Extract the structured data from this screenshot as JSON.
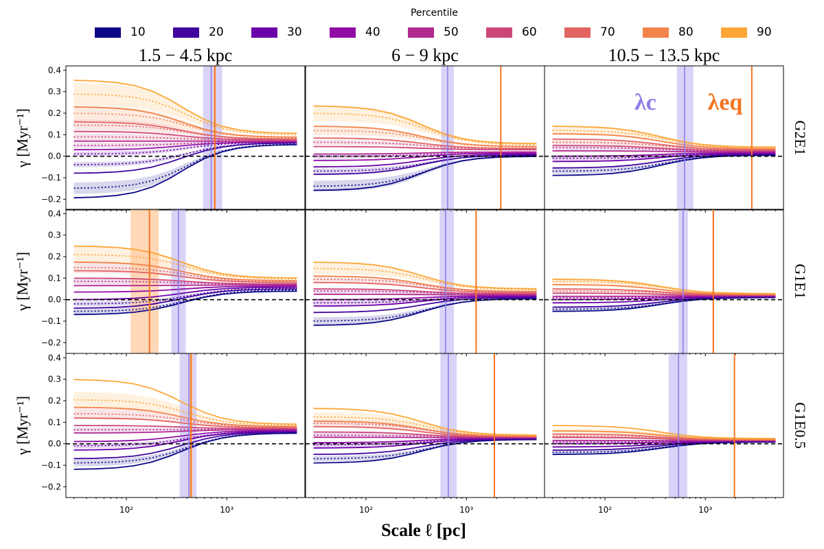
{
  "legend": {
    "title": "Percentile",
    "entries": [
      {
        "label": "10",
        "color": "#0d0887"
      },
      {
        "label": "20",
        "color": "#41049d"
      },
      {
        "label": "30",
        "color": "#6a00a8"
      },
      {
        "label": "40",
        "color": "#8f0da4"
      },
      {
        "label": "50",
        "color": "#b12a90"
      },
      {
        "label": "60",
        "color": "#cc4778"
      },
      {
        "label": "70",
        "color": "#e16462"
      },
      {
        "label": "80",
        "color": "#f2844b"
      },
      {
        "label": "90",
        "color": "#fca636"
      }
    ]
  },
  "columns": [
    "1.5 − 4.5 kpc",
    "6 − 9 kpc",
    "10.5 − 13.5 kpc"
  ],
  "rows": [
    "G2E1",
    "G1E1",
    "G1E0.5"
  ],
  "annotations": {
    "lambda_c": "λc",
    "lambda_eq": "λeq"
  },
  "colors": {
    "lambda_c": "#8f7de8",
    "lambda_eq": "#f5751f",
    "band_c": "#b9b0f0",
    "band_eq": "#ffc89a"
  },
  "chart_data": {
    "type": "line",
    "title": "",
    "xlabel": "Scale ℓ  [pc]",
    "ylabel": "γ [Myr⁻¹]",
    "xscale": "log",
    "xlim": [
      25,
      6000
    ],
    "ylim": [
      -0.25,
      0.42
    ],
    "yticks": [
      -0.2,
      -0.1,
      0.0,
      0.1,
      0.2,
      0.3,
      0.4
    ],
    "ytick_labels": [
      "−0.2",
      "−0.1",
      "0.0",
      "0.1",
      "0.2",
      "0.3",
      "0.4"
    ],
    "xticks": [
      100,
      1000
    ],
    "xtick_labels": [
      "10²",
      "10³"
    ],
    "x": [
      30,
      50,
      80,
      120,
      180,
      270,
      400,
      600,
      900,
      1300,
      2000,
      3000,
      5000
    ],
    "panels": [
      {
        "row": "G2E1",
        "col": "1.5 − 4.5 kpc",
        "lambda_c": {
          "value": 700,
          "band": [
            580,
            900
          ]
        },
        "lambda_eq": {
          "value": 760,
          "band": [
            740,
            780
          ]
        },
        "solid": [
          {
            "percentile": "10",
            "start": -0.195,
            "end": 0.055
          },
          {
            "percentile": "20",
            "start": -0.08,
            "end": 0.062
          },
          {
            "percentile": "40",
            "start": 0.03,
            "end": 0.066
          },
          {
            "percentile": "50",
            "start": 0.07,
            "end": 0.07
          },
          {
            "percentile": "60",
            "start": 0.115,
            "end": 0.075
          },
          {
            "percentile": "70",
            "start": 0.16,
            "end": 0.08
          },
          {
            "percentile": "80",
            "start": 0.23,
            "end": 0.088
          },
          {
            "percentile": "90",
            "start": 0.355,
            "end": 0.105
          }
        ],
        "dotted": [
          {
            "percentile": "10",
            "start": -0.15,
            "end": 0.058
          },
          {
            "percentile": "20",
            "start": -0.04,
            "end": 0.063
          },
          {
            "percentile": "30",
            "start": 0.01,
            "end": 0.065
          },
          {
            "percentile": "50",
            "start": 0.05,
            "end": 0.068
          },
          {
            "percentile": "60",
            "start": 0.09,
            "end": 0.072
          },
          {
            "percentile": "70",
            "start": 0.145,
            "end": 0.078
          },
          {
            "percentile": "80",
            "start": 0.2,
            "end": 0.085
          },
          {
            "percentile": "90",
            "start": 0.29,
            "end": 0.098
          }
        ]
      },
      {
        "row": "G2E1",
        "col": "6 − 9 kpc",
        "lambda_c": {
          "value": 650,
          "band": [
            560,
            750
          ]
        },
        "lambda_eq": {
          "value": 2200,
          "band": [
            2180,
            2220
          ]
        },
        "solid": [
          {
            "percentile": "10",
            "start": -0.16,
            "end": 0.0
          },
          {
            "percentile": "20",
            "start": -0.085,
            "end": 0.005
          },
          {
            "percentile": "30",
            "start": -0.05,
            "end": 0.01
          },
          {
            "percentile": "40",
            "start": -0.02,
            "end": 0.015
          },
          {
            "percentile": "50",
            "start": 0.01,
            "end": 0.02
          },
          {
            "percentile": "60",
            "start": 0.045,
            "end": 0.03
          },
          {
            "percentile": "70",
            "start": 0.085,
            "end": 0.036
          },
          {
            "percentile": "80",
            "start": 0.14,
            "end": 0.045
          },
          {
            "percentile": "90",
            "start": 0.235,
            "end": 0.058
          }
        ],
        "dotted": [
          {
            "percentile": "10",
            "start": -0.14,
            "end": 0.002
          },
          {
            "percentile": "20",
            "start": -0.07,
            "end": 0.006
          },
          {
            "percentile": "40",
            "start": 0.0,
            "end": 0.016
          },
          {
            "percentile": "60",
            "start": 0.065,
            "end": 0.032
          },
          {
            "percentile": "80",
            "start": 0.12,
            "end": 0.042
          },
          {
            "percentile": "90",
            "start": 0.2,
            "end": 0.052
          }
        ]
      },
      {
        "row": "G2E1",
        "col": "10.5 − 13.5 kpc",
        "lambda_c": {
          "value": 620,
          "band": [
            520,
            760
          ]
        },
        "lambda_eq": {
          "value": 2900,
          "band": [
            2880,
            2920
          ]
        },
        "solid": [
          {
            "percentile": "10",
            "start": -0.09,
            "end": 0.005
          },
          {
            "percentile": "20",
            "start": -0.055,
            "end": 0.008
          },
          {
            "percentile": "30",
            "start": -0.025,
            "end": 0.012
          },
          {
            "percentile": "40",
            "start": 0.0,
            "end": 0.016
          },
          {
            "percentile": "50",
            "start": 0.025,
            "end": 0.02
          },
          {
            "percentile": "60",
            "start": 0.05,
            "end": 0.025
          },
          {
            "percentile": "70",
            "start": 0.08,
            "end": 0.03
          },
          {
            "percentile": "80",
            "start": 0.105,
            "end": 0.035
          },
          {
            "percentile": "90",
            "start": 0.14,
            "end": 0.042
          }
        ],
        "dotted": [
          {
            "percentile": "10",
            "start": -0.07,
            "end": 0.006
          },
          {
            "percentile": "30",
            "start": -0.01,
            "end": 0.013
          },
          {
            "percentile": "50",
            "start": 0.04,
            "end": 0.022
          },
          {
            "percentile": "70",
            "start": 0.065,
            "end": 0.028
          },
          {
            "percentile": "90",
            "start": 0.12,
            "end": 0.038
          }
        ]
      },
      {
        "row": "G1E1",
        "col": "1.5 − 4.5 kpc",
        "lambda_c": {
          "value": 330,
          "band": [
            280,
            390
          ]
        },
        "lambda_eq": {
          "value": 170,
          "band": [
            110,
            210
          ]
        },
        "solid": [
          {
            "percentile": "10",
            "start": -0.07,
            "end": 0.04
          },
          {
            "percentile": "20",
            "start": -0.04,
            "end": 0.05
          },
          {
            "percentile": "30",
            "start": 0.0,
            "end": 0.058
          },
          {
            "percentile": "40",
            "start": 0.035,
            "end": 0.063
          },
          {
            "percentile": "50",
            "start": 0.065,
            "end": 0.068
          },
          {
            "percentile": "60",
            "start": 0.1,
            "end": 0.073
          },
          {
            "percentile": "70",
            "start": 0.135,
            "end": 0.08
          },
          {
            "percentile": "80",
            "start": 0.175,
            "end": 0.088
          },
          {
            "percentile": "90",
            "start": 0.25,
            "end": 0.1
          }
        ],
        "dotted": [
          {
            "percentile": "10",
            "start": -0.055,
            "end": 0.045
          },
          {
            "percentile": "20",
            "start": -0.02,
            "end": 0.053
          },
          {
            "percentile": "50",
            "start": 0.085,
            "end": 0.07
          },
          {
            "percentile": "70",
            "start": 0.15,
            "end": 0.083
          },
          {
            "percentile": "90",
            "start": 0.21,
            "end": 0.095
          }
        ]
      },
      {
        "row": "G1E1",
        "col": "6 − 9 kpc",
        "lambda_c": {
          "value": 620,
          "band": [
            540,
            750
          ]
        },
        "lambda_eq": {
          "value": 1250,
          "band": [
            1230,
            1270
          ]
        },
        "solid": [
          {
            "percentile": "10",
            "start": -0.12,
            "end": 0.005
          },
          {
            "percentile": "20",
            "start": -0.06,
            "end": 0.01
          },
          {
            "percentile": "30",
            "start": -0.03,
            "end": 0.014
          },
          {
            "percentile": "40",
            "start": 0.0,
            "end": 0.018
          },
          {
            "percentile": "50",
            "start": 0.025,
            "end": 0.022
          },
          {
            "percentile": "60",
            "start": 0.05,
            "end": 0.027
          },
          {
            "percentile": "70",
            "start": 0.08,
            "end": 0.032
          },
          {
            "percentile": "80",
            "start": 0.11,
            "end": 0.038
          },
          {
            "percentile": "90",
            "start": 0.175,
            "end": 0.05
          }
        ],
        "dotted": [
          {
            "percentile": "10",
            "start": -0.1,
            "end": 0.006
          },
          {
            "percentile": "30",
            "start": -0.015,
            "end": 0.015
          },
          {
            "percentile": "50",
            "start": 0.04,
            "end": 0.024
          },
          {
            "percentile": "70",
            "start": 0.095,
            "end": 0.035
          },
          {
            "percentile": "90",
            "start": 0.145,
            "end": 0.045
          }
        ]
      },
      {
        "row": "G1E1",
        "col": "10.5 − 13.5 kpc",
        "lambda_c": {
          "value": 600,
          "band": [
            540,
            670
          ]
        },
        "lambda_eq": {
          "value": 1200,
          "band": [
            1180,
            1220
          ]
        },
        "solid": [
          {
            "percentile": "10",
            "start": -0.055,
            "end": 0.01
          },
          {
            "percentile": "20",
            "start": -0.035,
            "end": 0.012
          },
          {
            "percentile": "30",
            "start": -0.015,
            "end": 0.014
          },
          {
            "percentile": "40",
            "start": 0.0,
            "end": 0.016
          },
          {
            "percentile": "50",
            "start": 0.015,
            "end": 0.018
          },
          {
            "percentile": "60",
            "start": 0.03,
            "end": 0.02
          },
          {
            "percentile": "70",
            "start": 0.05,
            "end": 0.022
          },
          {
            "percentile": "80",
            "start": 0.07,
            "end": 0.024
          },
          {
            "percentile": "90",
            "start": 0.095,
            "end": 0.028
          }
        ],
        "dotted": [
          {
            "percentile": "10",
            "start": -0.045,
            "end": 0.011
          },
          {
            "percentile": "40",
            "start": 0.008,
            "end": 0.017
          },
          {
            "percentile": "70",
            "start": 0.04,
            "end": 0.021
          },
          {
            "percentile": "90",
            "start": 0.085,
            "end": 0.026
          }
        ]
      },
      {
        "row": "G1E0.5",
        "col": "1.5 − 4.5 kpc",
        "lambda_c": {
          "value": 420,
          "band": [
            340,
            500
          ]
        },
        "lambda_eq": {
          "value": 440,
          "band": [
            420,
            460
          ]
        },
        "solid": [
          {
            "percentile": "10",
            "start": -0.12,
            "end": 0.05
          },
          {
            "percentile": "20",
            "start": -0.07,
            "end": 0.055
          },
          {
            "percentile": "30",
            "start": -0.03,
            "end": 0.058
          },
          {
            "percentile": "40",
            "start": 0.01,
            "end": 0.062
          },
          {
            "percentile": "50",
            "start": 0.05,
            "end": 0.066
          },
          {
            "percentile": "60",
            "start": 0.085,
            "end": 0.07
          },
          {
            "percentile": "70",
            "start": 0.12,
            "end": 0.074
          },
          {
            "percentile": "80",
            "start": 0.17,
            "end": 0.08
          },
          {
            "percentile": "90",
            "start": 0.3,
            "end": 0.09
          }
        ],
        "dotted": [
          {
            "percentile": "10",
            "start": -0.09,
            "end": 0.052
          },
          {
            "percentile": "30",
            "start": -0.01,
            "end": 0.06
          },
          {
            "percentile": "50",
            "start": 0.065,
            "end": 0.068
          },
          {
            "percentile": "70",
            "start": 0.14,
            "end": 0.077
          },
          {
            "percentile": "90",
            "start": 0.205,
            "end": 0.085
          }
        ]
      },
      {
        "row": "G1E0.5",
        "col": "6 − 9 kpc",
        "lambda_c": {
          "value": 660,
          "band": [
            550,
            800
          ]
        },
        "lambda_eq": {
          "value": 1900,
          "band": [
            1880,
            1920
          ]
        },
        "solid": [
          {
            "percentile": "10",
            "start": -0.09,
            "end": 0.02
          },
          {
            "percentile": "20",
            "start": -0.05,
            "end": 0.022
          },
          {
            "percentile": "30",
            "start": -0.02,
            "end": 0.024
          },
          {
            "percentile": "40",
            "start": 0.005,
            "end": 0.026
          },
          {
            "percentile": "50",
            "start": 0.03,
            "end": 0.028
          },
          {
            "percentile": "60",
            "start": 0.055,
            "end": 0.03
          },
          {
            "percentile": "70",
            "start": 0.08,
            "end": 0.032
          },
          {
            "percentile": "80",
            "start": 0.105,
            "end": 0.035
          },
          {
            "percentile": "90",
            "start": 0.165,
            "end": 0.04
          }
        ],
        "dotted": [
          {
            "percentile": "10",
            "start": -0.07,
            "end": 0.021
          },
          {
            "percentile": "30",
            "start": -0.005,
            "end": 0.025
          },
          {
            "percentile": "50",
            "start": 0.04,
            "end": 0.029
          },
          {
            "percentile": "70",
            "start": 0.095,
            "end": 0.033
          },
          {
            "percentile": "90",
            "start": 0.125,
            "end": 0.037
          }
        ]
      },
      {
        "row": "G1E0.5",
        "col": "10.5 − 13.5 kpc",
        "lambda_c": {
          "value": 540,
          "band": [
            430,
            660
          ]
        },
        "lambda_eq": {
          "value": 1950,
          "band": [
            1930,
            1970
          ]
        },
        "solid": [
          {
            "percentile": "10",
            "start": -0.05,
            "end": 0.008
          },
          {
            "percentile": "20",
            "start": -0.03,
            "end": 0.01
          },
          {
            "percentile": "30",
            "start": -0.015,
            "end": 0.011
          },
          {
            "percentile": "40",
            "start": 0.0,
            "end": 0.013
          },
          {
            "percentile": "50",
            "start": 0.015,
            "end": 0.014
          },
          {
            "percentile": "60",
            "start": 0.03,
            "end": 0.016
          },
          {
            "percentile": "70",
            "start": 0.045,
            "end": 0.018
          },
          {
            "percentile": "80",
            "start": 0.06,
            "end": 0.02
          },
          {
            "percentile": "90",
            "start": 0.085,
            "end": 0.024
          }
        ],
        "dotted": [
          {
            "percentile": "10",
            "start": -0.04,
            "end": 0.009
          },
          {
            "percentile": "40",
            "start": 0.008,
            "end": 0.013
          },
          {
            "percentile": "70",
            "start": 0.035,
            "end": 0.017
          },
          {
            "percentile": "90",
            "start": 0.06,
            "end": 0.021
          }
        ]
      }
    ]
  }
}
